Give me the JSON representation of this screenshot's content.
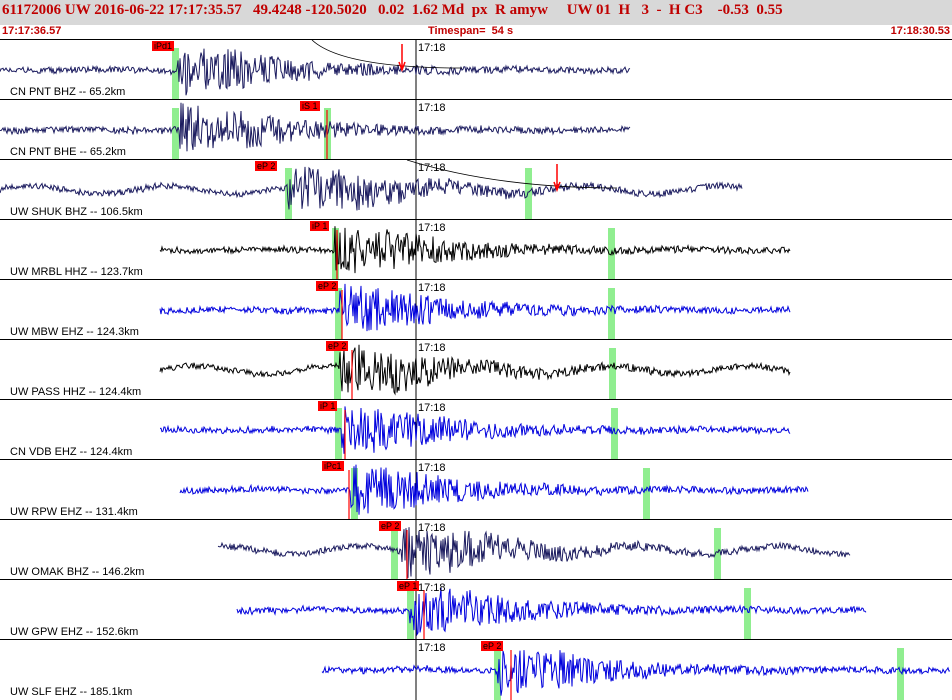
{
  "header": {
    "title": "61172006 UW 2016-06-22 17:17:35.57   49.4248 -120.5020   0.02  1.62 Md  px  R amyw     UW 01  H   3  -  H C3    -0.53  0.55",
    "start_time": "17:17:36.57",
    "timespan": "Timespan=  54 s",
    "end_time": "17:18:30.53"
  },
  "colors": {
    "header_bg": "#d8d8d8",
    "title_text": "#c00000",
    "pick_bg": "#ff0000",
    "pick_window": "#90ee90",
    "trace_navy": "#1a1a5e",
    "trace_black": "#000000",
    "trace_blue": "#0000dd",
    "moveout_curve": "#000000"
  },
  "traces": [
    {
      "label": "CN PNT BHZ -- 65.2km",
      "time_label": "17:18",
      "pick": "iPd1",
      "color": "trace_navy"
    },
    {
      "label": "CN PNT BHE -- 65.2km",
      "time_label": "17:18",
      "pick": "iS 1",
      "color": "trace_navy"
    },
    {
      "label": "UW SHUK BHZ -- 106.5km",
      "time_label": "17:18",
      "pick": "eP 2",
      "color": "trace_navy"
    },
    {
      "label": "UW MRBL HHZ -- 123.7km",
      "time_label": "17:18",
      "pick": "iP 1",
      "color": "trace_black"
    },
    {
      "label": "UW MBW EHZ -- 124.3km",
      "time_label": "17:18",
      "pick": "eP 2",
      "color": "trace_blue"
    },
    {
      "label": "UW PASS HHZ -- 124.4km",
      "time_label": "17:18",
      "pick": "eP 2",
      "color": "trace_black"
    },
    {
      "label": "CN VDB EHZ -- 124.4km",
      "time_label": "17:18",
      "pick": "iP 1",
      "color": "trace_blue"
    },
    {
      "label": "UW RPW EHZ -- 131.4km",
      "time_label": "17:18",
      "pick": "iPc1",
      "color": "trace_blue"
    },
    {
      "label": "UW OMAK BHZ -- 146.2km",
      "time_label": "17:18",
      "pick": "eP 2",
      "color": "trace_navy"
    },
    {
      "label": "UW GPW EHZ -- 152.6km",
      "time_label": "17:18",
      "pick": "eP 1",
      "color": "trace_blue"
    },
    {
      "label": "UW SLF EHZ -- 185.1km",
      "time_label": "17:18",
      "pick": "eP 2",
      "color": "trace_blue"
    }
  ]
}
